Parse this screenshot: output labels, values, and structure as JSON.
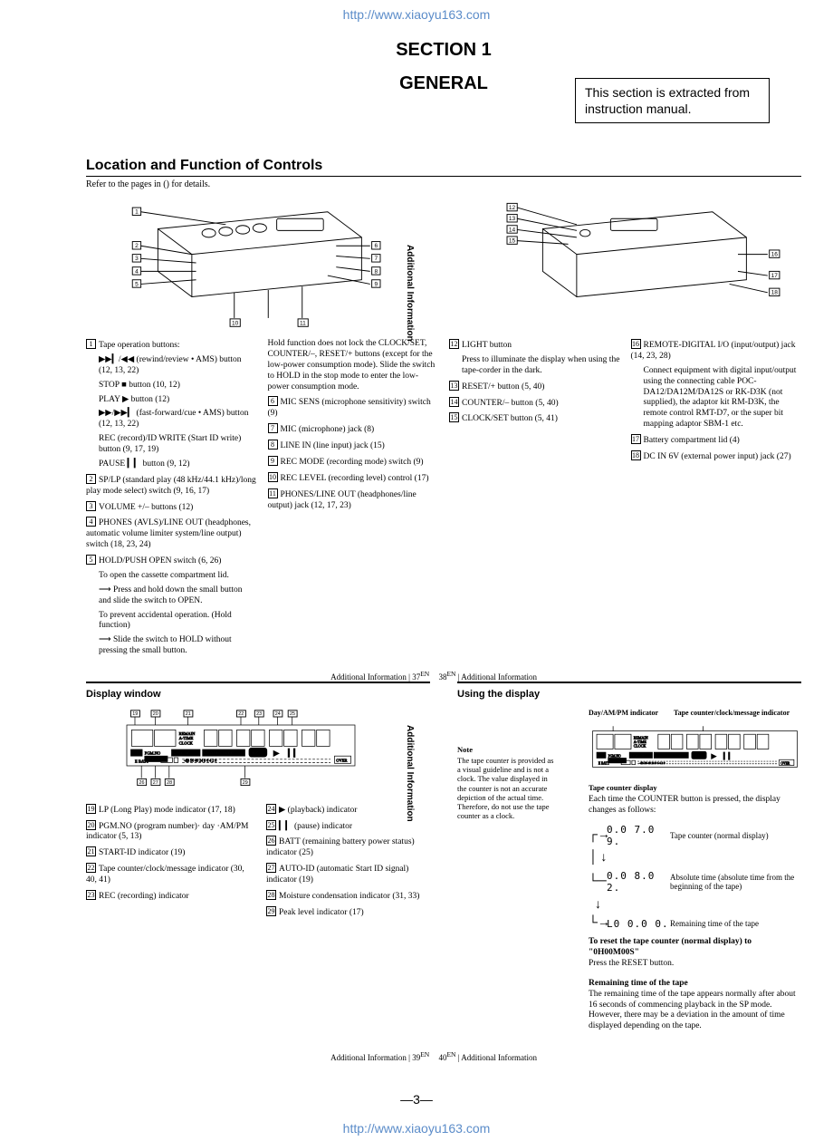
{
  "urls": {
    "top": "http://www.xiaoyu163.com",
    "bottom": "http://www.xiaoyu163.com"
  },
  "section": {
    "line1": "SECTION 1",
    "line2": "GENERAL"
  },
  "extract_box": "This section is extracted from instruction manual.",
  "loc": {
    "title": "Location and Function of Controls",
    "sub": "Refer to the pages in () for details."
  },
  "items_left": [
    {
      "n": "1",
      "t": "Tape operation buttons:",
      "sub": [
        "▶▶▎/◀◀ (rewind/review • AMS) button (12, 13, 22)",
        "STOP ■ button (10, 12)",
        "PLAY ▶ button (12)",
        "▶▶/▶▶▎ (fast-forward/cue • AMS) button (12, 13, 22)",
        "REC (record)/ID WRITE (Start ID write) button (9, 17, 19)",
        "PAUSE ▎▎ button (9, 12)"
      ]
    },
    {
      "n": "2",
      "t": "SP/LP (standard play (48 kHz/44.1 kHz)/long play mode select) switch (9, 16, 17)"
    },
    {
      "n": "3",
      "t": "VOLUME +/– buttons (12)"
    },
    {
      "n": "4",
      "t": "PHONES (AVLS)/LINE OUT (headphones, automatic volume limiter system/line output) switch (18, 23, 24)"
    },
    {
      "n": "5",
      "t": "HOLD/PUSH OPEN switch (6, 26)",
      "sub": [
        "To open the cassette compartment lid.",
        "⟶ Press and hold down the small button and slide the switch to OPEN.",
        "To prevent accidental operation. (Hold function)",
        "⟶ Slide the switch to HOLD without pressing the small button."
      ]
    }
  ],
  "items_left2": [
    {
      "t": "Hold function does not lock the CLOCK/SET, COUNTER/–, RESET/+ buttons (except for the low-power consumption mode). Slide the switch to HOLD in the stop mode to enter the low-power consumption mode."
    },
    {
      "n": "6",
      "t": "MIC SENS (microphone sensitivity) switch (9)"
    },
    {
      "n": "7",
      "t": "MIC (microphone) jack (8)"
    },
    {
      "n": "8",
      "t": "LINE IN (line input) jack (15)"
    },
    {
      "n": "9",
      "t": "REC MODE (recording mode) switch (9)"
    },
    {
      "n": "10",
      "t": "REC LEVEL (recording level) control (17)"
    },
    {
      "n": "11",
      "t": "PHONES/LINE OUT (headphones/line output) jack (12, 17, 23)"
    }
  ],
  "items_right1": [
    {
      "n": "12",
      "t": "LIGHT button",
      "sub": [
        "Press to illuminate the display when using the tape-corder in the dark."
      ]
    },
    {
      "n": "13",
      "t": "RESET/+ button (5, 40)"
    },
    {
      "n": "14",
      "t": "COUNTER/– button (5, 40)"
    },
    {
      "n": "15",
      "t": "CLOCK/SET button (5, 41)"
    }
  ],
  "items_right2": [
    {
      "n": "16",
      "t": "REMOTE-DIGITAL I/O (input/output) jack (14, 23, 28)",
      "sub": [
        "Connect equipment with digital input/output using the connecting cable POC-DA12/DA12M/DA12S or RK-D3K (not supplied), the adaptor kit RM-D3K, the remote control RMT-D7, or the super bit mapping adaptor SBM-1 etc."
      ]
    },
    {
      "n": "17",
      "t": "Battery compartment lid (4)"
    },
    {
      "n": "18",
      "t": "DC IN 6V (external power input) jack (27)"
    }
  ],
  "ai_label": "Additional Information",
  "pg37": "37",
  "pg38": "38",
  "pg39": "39",
  "pg40": "40",
  "pg_en": "EN",
  "display_title": "Display window",
  "using_title": "Using the display",
  "disp_left": [
    {
      "n": "19",
      "t": "LP (Long Play) mode indicator (17, 18)"
    },
    {
      "n": "20",
      "t": "PGM.NO (program number)· day ·AM/PM indicator (5, 13)"
    },
    {
      "n": "21",
      "t": "START-ID indicator (19)"
    },
    {
      "n": "22",
      "t": "Tape counter/clock/message indicator (30, 40, 41)"
    },
    {
      "n": "23",
      "t": "REC (recording) indicator"
    }
  ],
  "disp_right": [
    {
      "n": "24",
      "t": "▶ (playback) indicator"
    },
    {
      "n": "25",
      "t": "▎▎ (pause) indicator"
    },
    {
      "n": "26",
      "t": "BATT (remaining battery power status) indicator (25)"
    },
    {
      "n": "27",
      "t": "AUTO-ID (automatic Start ID signal) indicator (19)"
    },
    {
      "n": "28",
      "t": "Moisture condensation indicator (31, 33)"
    },
    {
      "n": "29",
      "t": "Peak level indicator (17)"
    }
  ],
  "disp_hdr1": "Day/AM/PM indicator",
  "disp_hdr2": "Tape counter/clock/message indicator",
  "tc_title": "Tape counter display",
  "tc_desc": "Each time the COUNTER button is pressed, the display changes as follows:",
  "tc_row1_sym": "0.0 7.0 9.",
  "tc_row1_txt": "Tape counter (normal display)",
  "tc_row2_sym": "0.0 8.0 2.",
  "tc_row2_txt": "Absolute time (absolute time from the beginning of the tape)",
  "tc_row3_sym": "L0 0.0 0.",
  "tc_row3_txt": "Remaining time of the tape",
  "reset_t": "To reset the tape counter (normal display) to \"0H00M00S\"",
  "reset_p": "Press the RESET button.",
  "rem_t": "Remaining time of the tape",
  "rem_p": "The remaining time of the tape appears normally after about 16 seconds of commencing playback in the SP mode. However, there may be a deviation in the amount of time displayed depending on the tape.",
  "note_h": "Note",
  "note_p": "The tape counter is provided as a visual guideline and is not a clock. The value displayed in the counter is not an accurate depiction of the actual time. Therefore, do not use the tape counter as a clock.",
  "page_no": "—3—",
  "colors": {
    "url": "#5b8cc9",
    "line": "#000",
    "bg": "#fff"
  }
}
